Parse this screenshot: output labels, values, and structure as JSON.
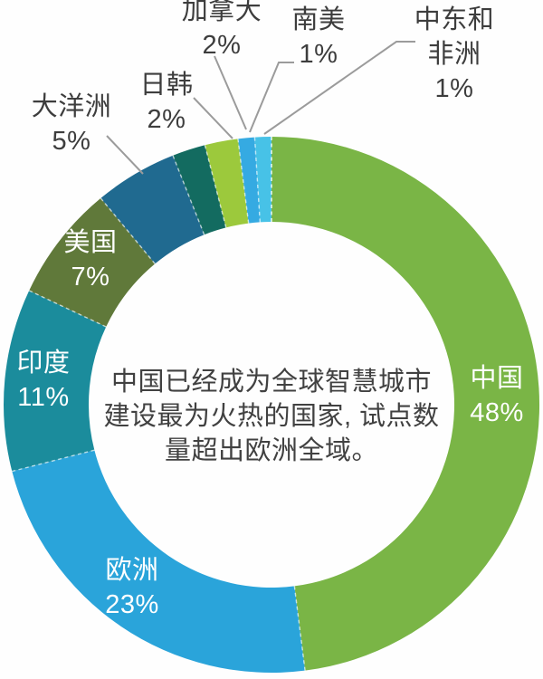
{
  "chart_data": {
    "type": "pie",
    "subtype": "donut",
    "title": "",
    "legend_position": "none",
    "direction": "clockwise",
    "start_angle_deg": 0,
    "background": "#ffffff",
    "label_color_outside": "#3d3d3d",
    "label_color_inside": "#ffffff",
    "leader_line_color": "#9b9b9b",
    "segments": [
      {
        "id": "china",
        "label": "中国",
        "pct_label": "48%",
        "value": 48,
        "color": "#7ab546",
        "label_placement": "inside"
      },
      {
        "id": "europe",
        "label": "欧洲",
        "pct_label": "23%",
        "value": 23,
        "color": "#2aa4da",
        "label_placement": "inside"
      },
      {
        "id": "india",
        "label": "印度",
        "pct_label": "11%",
        "value": 11,
        "color": "#1b8c9c",
        "label_placement": "inside"
      },
      {
        "id": "usa",
        "label": "美国",
        "pct_label": "7%",
        "value": 7,
        "color": "#60793a",
        "label_placement": "inside"
      },
      {
        "id": "oceania",
        "label": "大洋洲",
        "pct_label": "5%",
        "value": 5,
        "color": "#206a90",
        "label_placement": "outside"
      },
      {
        "id": "japan-korea",
        "label": "日韩",
        "pct_label": "2%",
        "value": 2,
        "color": "#136b60",
        "label_placement": "outside"
      },
      {
        "id": "canada",
        "label": "加拿大",
        "pct_label": "2%",
        "value": 2,
        "color": "#9cc93c",
        "label_placement": "outside"
      },
      {
        "id": "south-america",
        "label": "南美",
        "pct_label": "1%",
        "value": 1,
        "color": "#35aae2",
        "label_placement": "outside"
      },
      {
        "id": "mideast-africa",
        "label": "中东和非洲",
        "pct_label": "1%",
        "value": 1,
        "color": "#47c2e7",
        "label_placement": "outside"
      }
    ],
    "center_text": {
      "lines": [
        "中国已经成为全球智慧城市",
        "建设最为火热的国家, 试点数",
        "量超出欧洲全域。"
      ],
      "full": "中国已经成为全球智慧城市建设最为火热的国家, 试点数量超出欧洲全域。"
    }
  }
}
